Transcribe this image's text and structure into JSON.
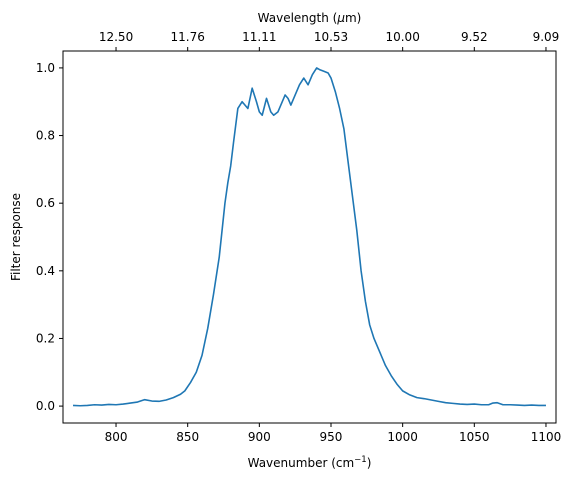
{
  "chart_data": {
    "type": "line",
    "xlabel": "Wavenumber (cm",
    "xlabel_unit_superscript": "−1",
    "xlabel_suffix": ")",
    "ylabel": "Filter response",
    "top_xlabel": "Wavelength (",
    "top_xlabel_mu": "μ",
    "top_xlabel_suffix": "m)",
    "xlim": [
      763,
      1107
    ],
    "ylim": [
      -0.05,
      1.05
    ],
    "x_ticks": [
      800,
      850,
      900,
      950,
      1000,
      1050,
      1100
    ],
    "y_ticks": [
      0.0,
      0.2,
      0.4,
      0.6,
      0.8,
      1.0
    ],
    "x_tick_labels": [
      "800",
      "850",
      "900",
      "950",
      "1000",
      "1050",
      "1100"
    ],
    "y_tick_labels": [
      "0.0",
      "0.2",
      "0.4",
      "0.6",
      "0.8",
      "1.0"
    ],
    "top_ticks": [
      800,
      850,
      900,
      950,
      1000,
      1050,
      1100
    ],
    "top_tick_labels": [
      "12.50",
      "11.76",
      "11.11",
      "10.53",
      "10.00",
      "9.52",
      "9.09"
    ],
    "grid": false,
    "colors": {
      "line": "#1f77b4",
      "axes": "#000000"
    },
    "series": [
      {
        "x": [
          770,
          775,
          780,
          785,
          790,
          795,
          800,
          805,
          810,
          815,
          820,
          825,
          830,
          835,
          840,
          845,
          848,
          852,
          856,
          860,
          864,
          868,
          872,
          874,
          876,
          878,
          880,
          882,
          885,
          888,
          890,
          892,
          895,
          898,
          900,
          902,
          905,
          908,
          910,
          913,
          916,
          918,
          920,
          922,
          925,
          928,
          931,
          934,
          937,
          940,
          942,
          945,
          948,
          950,
          953,
          956,
          959,
          962,
          965,
          968,
          971,
          974,
          977,
          980,
          984,
          988,
          992,
          996,
          1000,
          1005,
          1010,
          1015,
          1020,
          1025,
          1030,
          1035,
          1040,
          1045,
          1050,
          1055,
          1060,
          1063,
          1066,
          1070,
          1075,
          1080,
          1085,
          1090,
          1095,
          1100
        ],
        "y": [
          0.002,
          0.001,
          0.002,
          0.004,
          0.003,
          0.005,
          0.004,
          0.006,
          0.009,
          0.012,
          0.019,
          0.015,
          0.014,
          0.018,
          0.025,
          0.035,
          0.045,
          0.07,
          0.1,
          0.15,
          0.23,
          0.33,
          0.44,
          0.52,
          0.6,
          0.66,
          0.71,
          0.78,
          0.88,
          0.9,
          0.89,
          0.88,
          0.94,
          0.9,
          0.87,
          0.86,
          0.91,
          0.87,
          0.86,
          0.87,
          0.9,
          0.92,
          0.91,
          0.89,
          0.92,
          0.95,
          0.97,
          0.95,
          0.98,
          1.0,
          0.995,
          0.99,
          0.985,
          0.97,
          0.93,
          0.88,
          0.82,
          0.72,
          0.62,
          0.52,
          0.4,
          0.31,
          0.24,
          0.2,
          0.16,
          0.12,
          0.09,
          0.065,
          0.045,
          0.033,
          0.025,
          0.022,
          0.018,
          0.014,
          0.01,
          0.008,
          0.006,
          0.005,
          0.006,
          0.004,
          0.004,
          0.009,
          0.01,
          0.004,
          0.004,
          0.003,
          0.002,
          0.003,
          0.002,
          0.002
        ]
      }
    ]
  }
}
